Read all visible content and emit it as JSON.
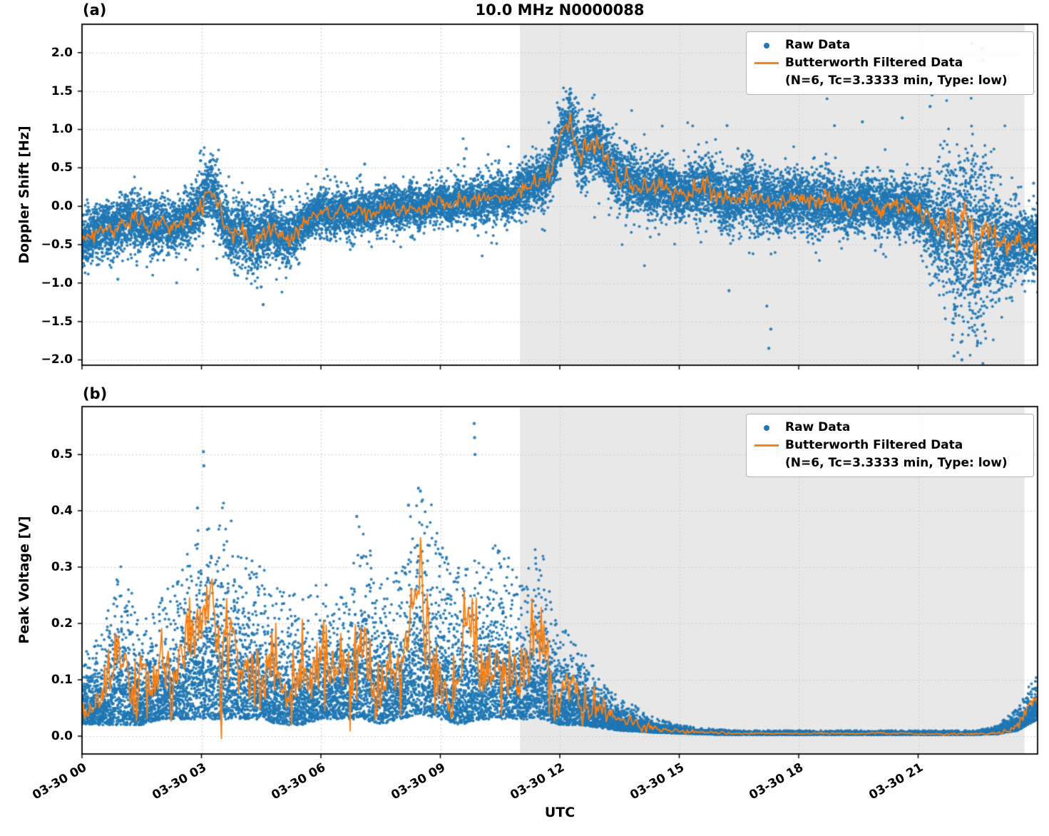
{
  "figure": {
    "colors": {
      "raw": "#1f77b4",
      "filtered": "#ff7f0e",
      "shade": "#e8e8e8",
      "grid": "#cccccc",
      "spine": "#000000",
      "background": "#ffffff"
    }
  },
  "chart_data": [
    {
      "id": "doppler_shift_panel",
      "panel_label": "(a)",
      "type": "scatter",
      "title": "10.0 MHz N0000088",
      "ylabel": "Doppler Shift [Hz]",
      "xlabel": "",
      "ylim": [
        -2.07,
        2.37
      ],
      "yticks": [
        {
          "v": 2.0,
          "label": "2.0"
        },
        {
          "v": 1.5,
          "label": "1.5"
        },
        {
          "v": 1.0,
          "label": "1.0"
        },
        {
          "v": 0.5,
          "label": "0.5"
        },
        {
          "v": 0.0,
          "label": "0.0"
        },
        {
          "v": -0.5,
          "label": "−0.5"
        },
        {
          "v": -1.0,
          "label": "−1.0"
        },
        {
          "v": -1.5,
          "label": "−1.5"
        },
        {
          "v": -2.0,
          "label": "−2.0"
        }
      ],
      "xlim_hours": [
        0,
        24
      ],
      "show_xtick_labels": false,
      "xticks": [
        {
          "h": 0,
          "label": "03-30 00"
        },
        {
          "h": 3,
          "label": "03-30 03"
        },
        {
          "h": 6,
          "label": "03-30 06"
        },
        {
          "h": 9,
          "label": "03-30 09"
        },
        {
          "h": 12,
          "label": "03-30 12"
        },
        {
          "h": 15,
          "label": "03-30 15"
        },
        {
          "h": 18,
          "label": "03-30 18"
        },
        {
          "h": 21,
          "label": "03-30 21"
        }
      ],
      "shade_region_hours": [
        11.0,
        23.67
      ],
      "grid": true,
      "legend": {
        "position": "upper right",
        "raw_label": "Raw Data",
        "filtered_label": "Butterworth Filtered Data",
        "filtered_sublabel": "(N=6, Tc=3.3333 min, Type: low)"
      },
      "series": {
        "filtered": {
          "name": "Butterworth Filtered Data",
          "t0": 0,
          "dt": 0.25,
          "v": [
            -0.45,
            -0.38,
            -0.3,
            -0.28,
            -0.22,
            -0.18,
            -0.22,
            -0.28,
            -0.22,
            -0.28,
            -0.2,
            -0.12,
            0.05,
            0.25,
            -0.1,
            -0.4,
            -0.25,
            -0.5,
            -0.35,
            -0.28,
            -0.38,
            -0.42,
            -0.25,
            -0.12,
            -0.05,
            -0.12,
            -0.05,
            -0.12,
            -0.03,
            -0.1,
            -0.04,
            0.0,
            -0.06,
            0.02,
            -0.04,
            0.02,
            0.06,
            0.0,
            0.1,
            0.05,
            0.1,
            0.08,
            0.14,
            0.1,
            0.18,
            0.28,
            0.32,
            0.4,
            0.85,
            1.15,
            0.6,
            0.85,
            0.8,
            0.55,
            0.38,
            0.3,
            0.28,
            0.2,
            0.28,
            0.22,
            0.15,
            0.22,
            0.18,
            0.28,
            0.12,
            0.05,
            0.12,
            0.22,
            0.06,
            0.12,
            0.02,
            0.08,
            0.12,
            0.02,
            0.06,
            0.12,
            0.02,
            -0.04,
            0.02,
            0.08,
            -0.04,
            0.02,
            -0.06,
            0.02,
            -0.05,
            -0.12,
            -0.35,
            -0.15,
            -0.55,
            -0.25,
            -0.65,
            -0.35,
            -0.45,
            -0.55,
            -0.42,
            -0.52,
            -0.45
          ]
        },
        "raw": {
          "name": "Raw Data",
          "t0": 0,
          "dt": 0.5,
          "spread": [
            0.25,
            0.25,
            0.25,
            0.25,
            0.25,
            0.22,
            0.28,
            0.3,
            0.3,
            0.3,
            0.28,
            0.22,
            0.2,
            0.2,
            0.2,
            0.2,
            0.2,
            0.18,
            0.18,
            0.2,
            0.2,
            0.2,
            0.22,
            0.25,
            0.28,
            0.3,
            0.3,
            0.3,
            0.28,
            0.28,
            0.25,
            0.28,
            0.25,
            0.3,
            0.3,
            0.28,
            0.28,
            0.3,
            0.25,
            0.25,
            0.25,
            0.25,
            0.25,
            0.45,
            0.8,
            0.9,
            0.5,
            0.3,
            0.3
          ]
        },
        "outliers": [
          [
            0.9,
            -0.95
          ],
          [
            3.1,
            0.55
          ],
          [
            4.5,
            -1.05
          ],
          [
            4.55,
            -1.28
          ],
          [
            7.1,
            0.55
          ],
          [
            9.6,
            0.62
          ],
          [
            9.65,
            0.75
          ],
          [
            13.2,
            1.0
          ],
          [
            16.2,
            1.05
          ],
          [
            16.25,
            -1.1
          ],
          [
            17.2,
            -1.3
          ],
          [
            17.25,
            -1.85
          ],
          [
            17.3,
            -1.6
          ],
          [
            18.9,
            1.05
          ],
          [
            19.6,
            1.1
          ],
          [
            20.6,
            1.15
          ],
          [
            21.3,
            1.3
          ],
          [
            21.35,
            1.45
          ],
          [
            21.9,
            -1.95
          ],
          [
            22.1,
            -2.0
          ],
          [
            22.35,
            2.12
          ],
          [
            22.6,
            2.05
          ],
          [
            22.62,
            1.9
          ],
          [
            23.9,
            0.3
          ]
        ]
      }
    },
    {
      "id": "peak_voltage_panel",
      "panel_label": "(b)",
      "type": "scatter",
      "title": "",
      "ylabel": "Peak Voltage [V]",
      "xlabel": "UTC",
      "ylim": [
        -0.0316,
        0.585
      ],
      "yticks": [
        {
          "v": 0.5,
          "label": "0.5"
        },
        {
          "v": 0.4,
          "label": "0.4"
        },
        {
          "v": 0.3,
          "label": "0.3"
        },
        {
          "v": 0.2,
          "label": "0.2"
        },
        {
          "v": 0.1,
          "label": "0.1"
        },
        {
          "v": 0.0,
          "label": "0.0"
        }
      ],
      "xlim_hours": [
        0,
        24
      ],
      "show_xtick_labels": true,
      "xticks": [
        {
          "h": 0,
          "label": "03-30 00"
        },
        {
          "h": 3,
          "label": "03-30 03"
        },
        {
          "h": 6,
          "label": "03-30 06"
        },
        {
          "h": 9,
          "label": "03-30 09"
        },
        {
          "h": 12,
          "label": "03-30 12"
        },
        {
          "h": 15,
          "label": "03-30 15"
        },
        {
          "h": 18,
          "label": "03-30 18"
        },
        {
          "h": 21,
          "label": "03-30 21"
        }
      ],
      "shade_region_hours": [
        11.0,
        23.67
      ],
      "grid": true,
      "legend": {
        "position": "upper right",
        "raw_label": "Raw Data",
        "filtered_label": "Butterworth Filtered Data",
        "filtered_sublabel": "(N=6, Tc=3.3333 min, Type: low)"
      },
      "series": {
        "filtered": {
          "name": "Butterworth Filtered Data",
          "t0": 0,
          "dt": 0.25,
          "v": [
            0.05,
            0.04,
            0.07,
            0.12,
            0.18,
            0.07,
            0.13,
            0.09,
            0.15,
            0.08,
            0.13,
            0.18,
            0.22,
            0.26,
            0.12,
            0.2,
            0.1,
            0.14,
            0.08,
            0.15,
            0.1,
            0.06,
            0.13,
            0.09,
            0.14,
            0.1,
            0.13,
            0.08,
            0.15,
            0.1,
            0.06,
            0.12,
            0.1,
            0.2,
            0.28,
            0.14,
            0.1,
            0.07,
            0.12,
            0.24,
            0.11,
            0.09,
            0.15,
            0.12,
            0.09,
            0.17,
            0.2,
            0.09,
            0.05,
            0.1,
            0.07,
            0.04,
            0.05,
            0.04,
            0.03,
            0.025,
            0.02,
            0.015,
            0.012,
            0.01,
            0.009,
            0.008,
            0.007,
            0.006,
            0.006,
            0.005,
            0.005,
            0.005,
            0.005,
            0.005,
            0.005,
            0.005,
            0.005,
            0.005,
            0.005,
            0.005,
            0.005,
            0.005,
            0.005,
            0.005,
            0.005,
            0.005,
            0.005,
            0.005,
            0.004,
            0.004,
            0.004,
            0.004,
            0.004,
            0.004,
            0.004,
            0.005,
            0.006,
            0.01,
            0.02,
            0.045,
            0.08
          ]
        },
        "raw": {
          "name": "Raw Data",
          "t0": 0,
          "dt": 0.5,
          "lo": [
            0.02,
            0.02,
            0.02,
            0.02,
            0.03,
            0.03,
            0.03,
            0.03,
            0.03,
            0.03,
            0.02,
            0.02,
            0.03,
            0.03,
            0.03,
            0.02,
            0.03,
            0.04,
            0.03,
            0.02,
            0.03,
            0.03,
            0.03,
            0.03,
            0.02,
            0.02,
            0.015,
            0.01,
            0.008,
            0.006,
            0.005,
            0.004,
            0.003,
            0.003,
            0.003,
            0.003,
            0.003,
            0.003,
            0.003,
            0.003,
            0.003,
            0.003,
            0.003,
            0.003,
            0.003,
            0.003,
            0.004,
            0.01,
            0.03
          ],
          "hi": [
            0.15,
            0.18,
            0.32,
            0.2,
            0.25,
            0.3,
            0.4,
            0.44,
            0.33,
            0.3,
            0.28,
            0.25,
            0.28,
            0.25,
            0.39,
            0.27,
            0.3,
            0.44,
            0.35,
            0.3,
            0.32,
            0.35,
            0.28,
            0.35,
            0.2,
            0.18,
            0.1,
            0.07,
            0.05,
            0.03,
            0.02,
            0.015,
            0.012,
            0.01,
            0.01,
            0.01,
            0.01,
            0.01,
            0.01,
            0.01,
            0.01,
            0.01,
            0.01,
            0.01,
            0.01,
            0.01,
            0.02,
            0.05,
            0.12
          ]
        },
        "outliers": [
          [
            2.9,
            0.405
          ],
          [
            3.05,
            0.505
          ],
          [
            3.06,
            0.48
          ],
          [
            6.9,
            0.39
          ],
          [
            8.2,
            0.41
          ],
          [
            8.45,
            0.44
          ],
          [
            8.5,
            0.435
          ],
          [
            9.85,
            0.555
          ],
          [
            9.86,
            0.53
          ],
          [
            9.87,
            0.5
          ]
        ]
      }
    }
  ]
}
